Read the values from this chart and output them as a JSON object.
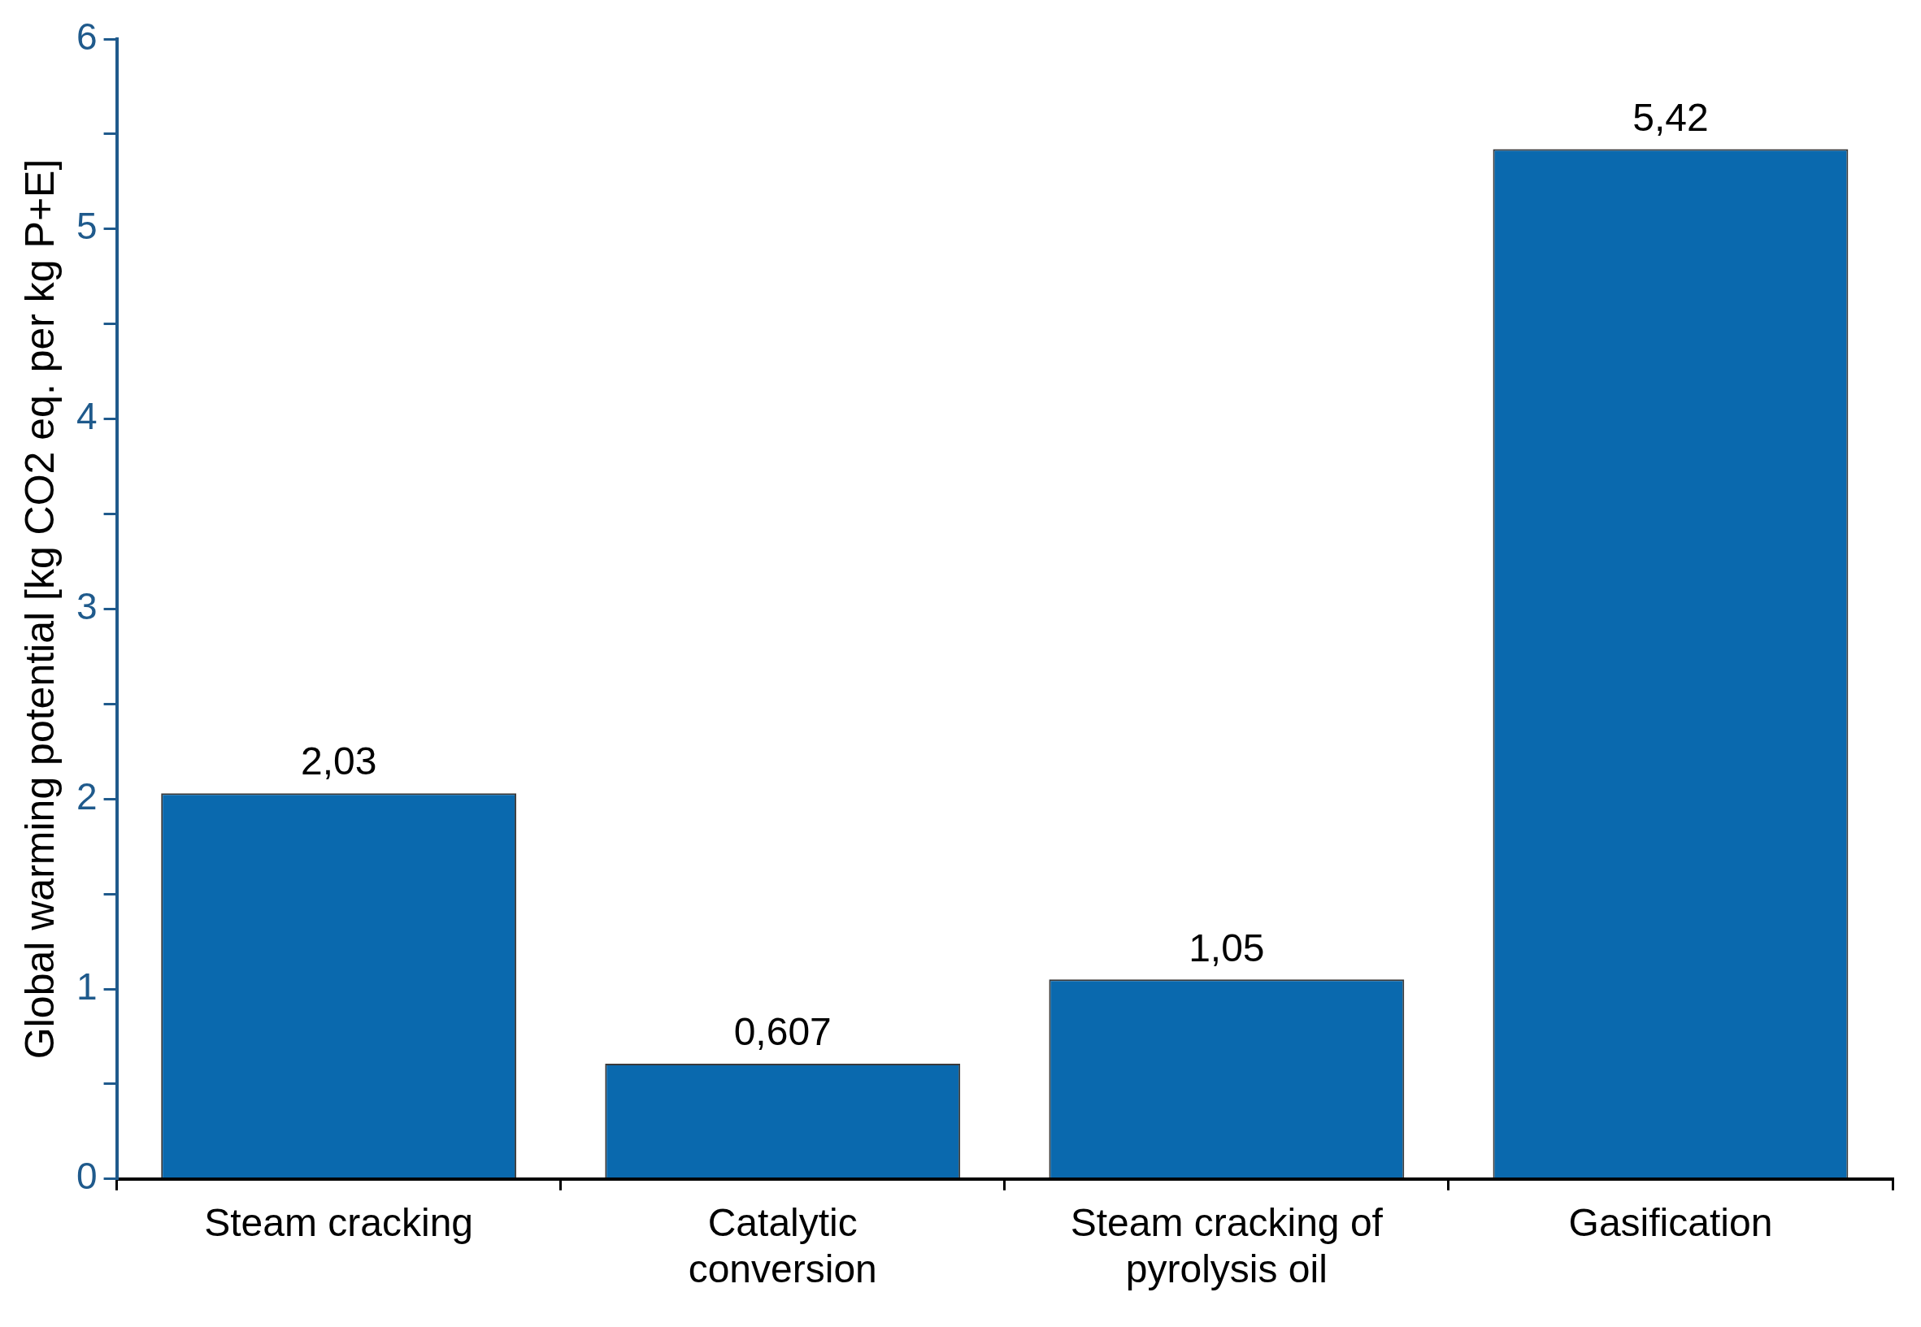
{
  "chart_data": {
    "type": "bar",
    "ylabel": "Global warming potential [kg CO2 eq. per kg P+E]",
    "categories": [
      "Steam cracking",
      "Catalytic conversion",
      "Steam cracking of pyrolysis oil",
      "Gasification"
    ],
    "values": [
      2.03,
      0.607,
      1.05,
      5.42
    ],
    "value_labels": [
      "2,03",
      "0,607",
      "1,05",
      "5,42"
    ],
    "color": "#0a69ae",
    "ylim": [
      0,
      6
    ],
    "yticks": [
      0,
      {
        "value": 0.5,
        "label": null
      },
      1,
      {
        "value": 1.5,
        "label": null
      },
      2,
      {
        "value": 2.5,
        "label": null
      },
      3,
      {
        "value": 3.5,
        "label": null
      },
      4,
      {
        "value": 4.5,
        "label": null
      },
      5,
      {
        "value": 5.5,
        "label": null
      },
      6
    ],
    "grid": false,
    "legend": false
  }
}
